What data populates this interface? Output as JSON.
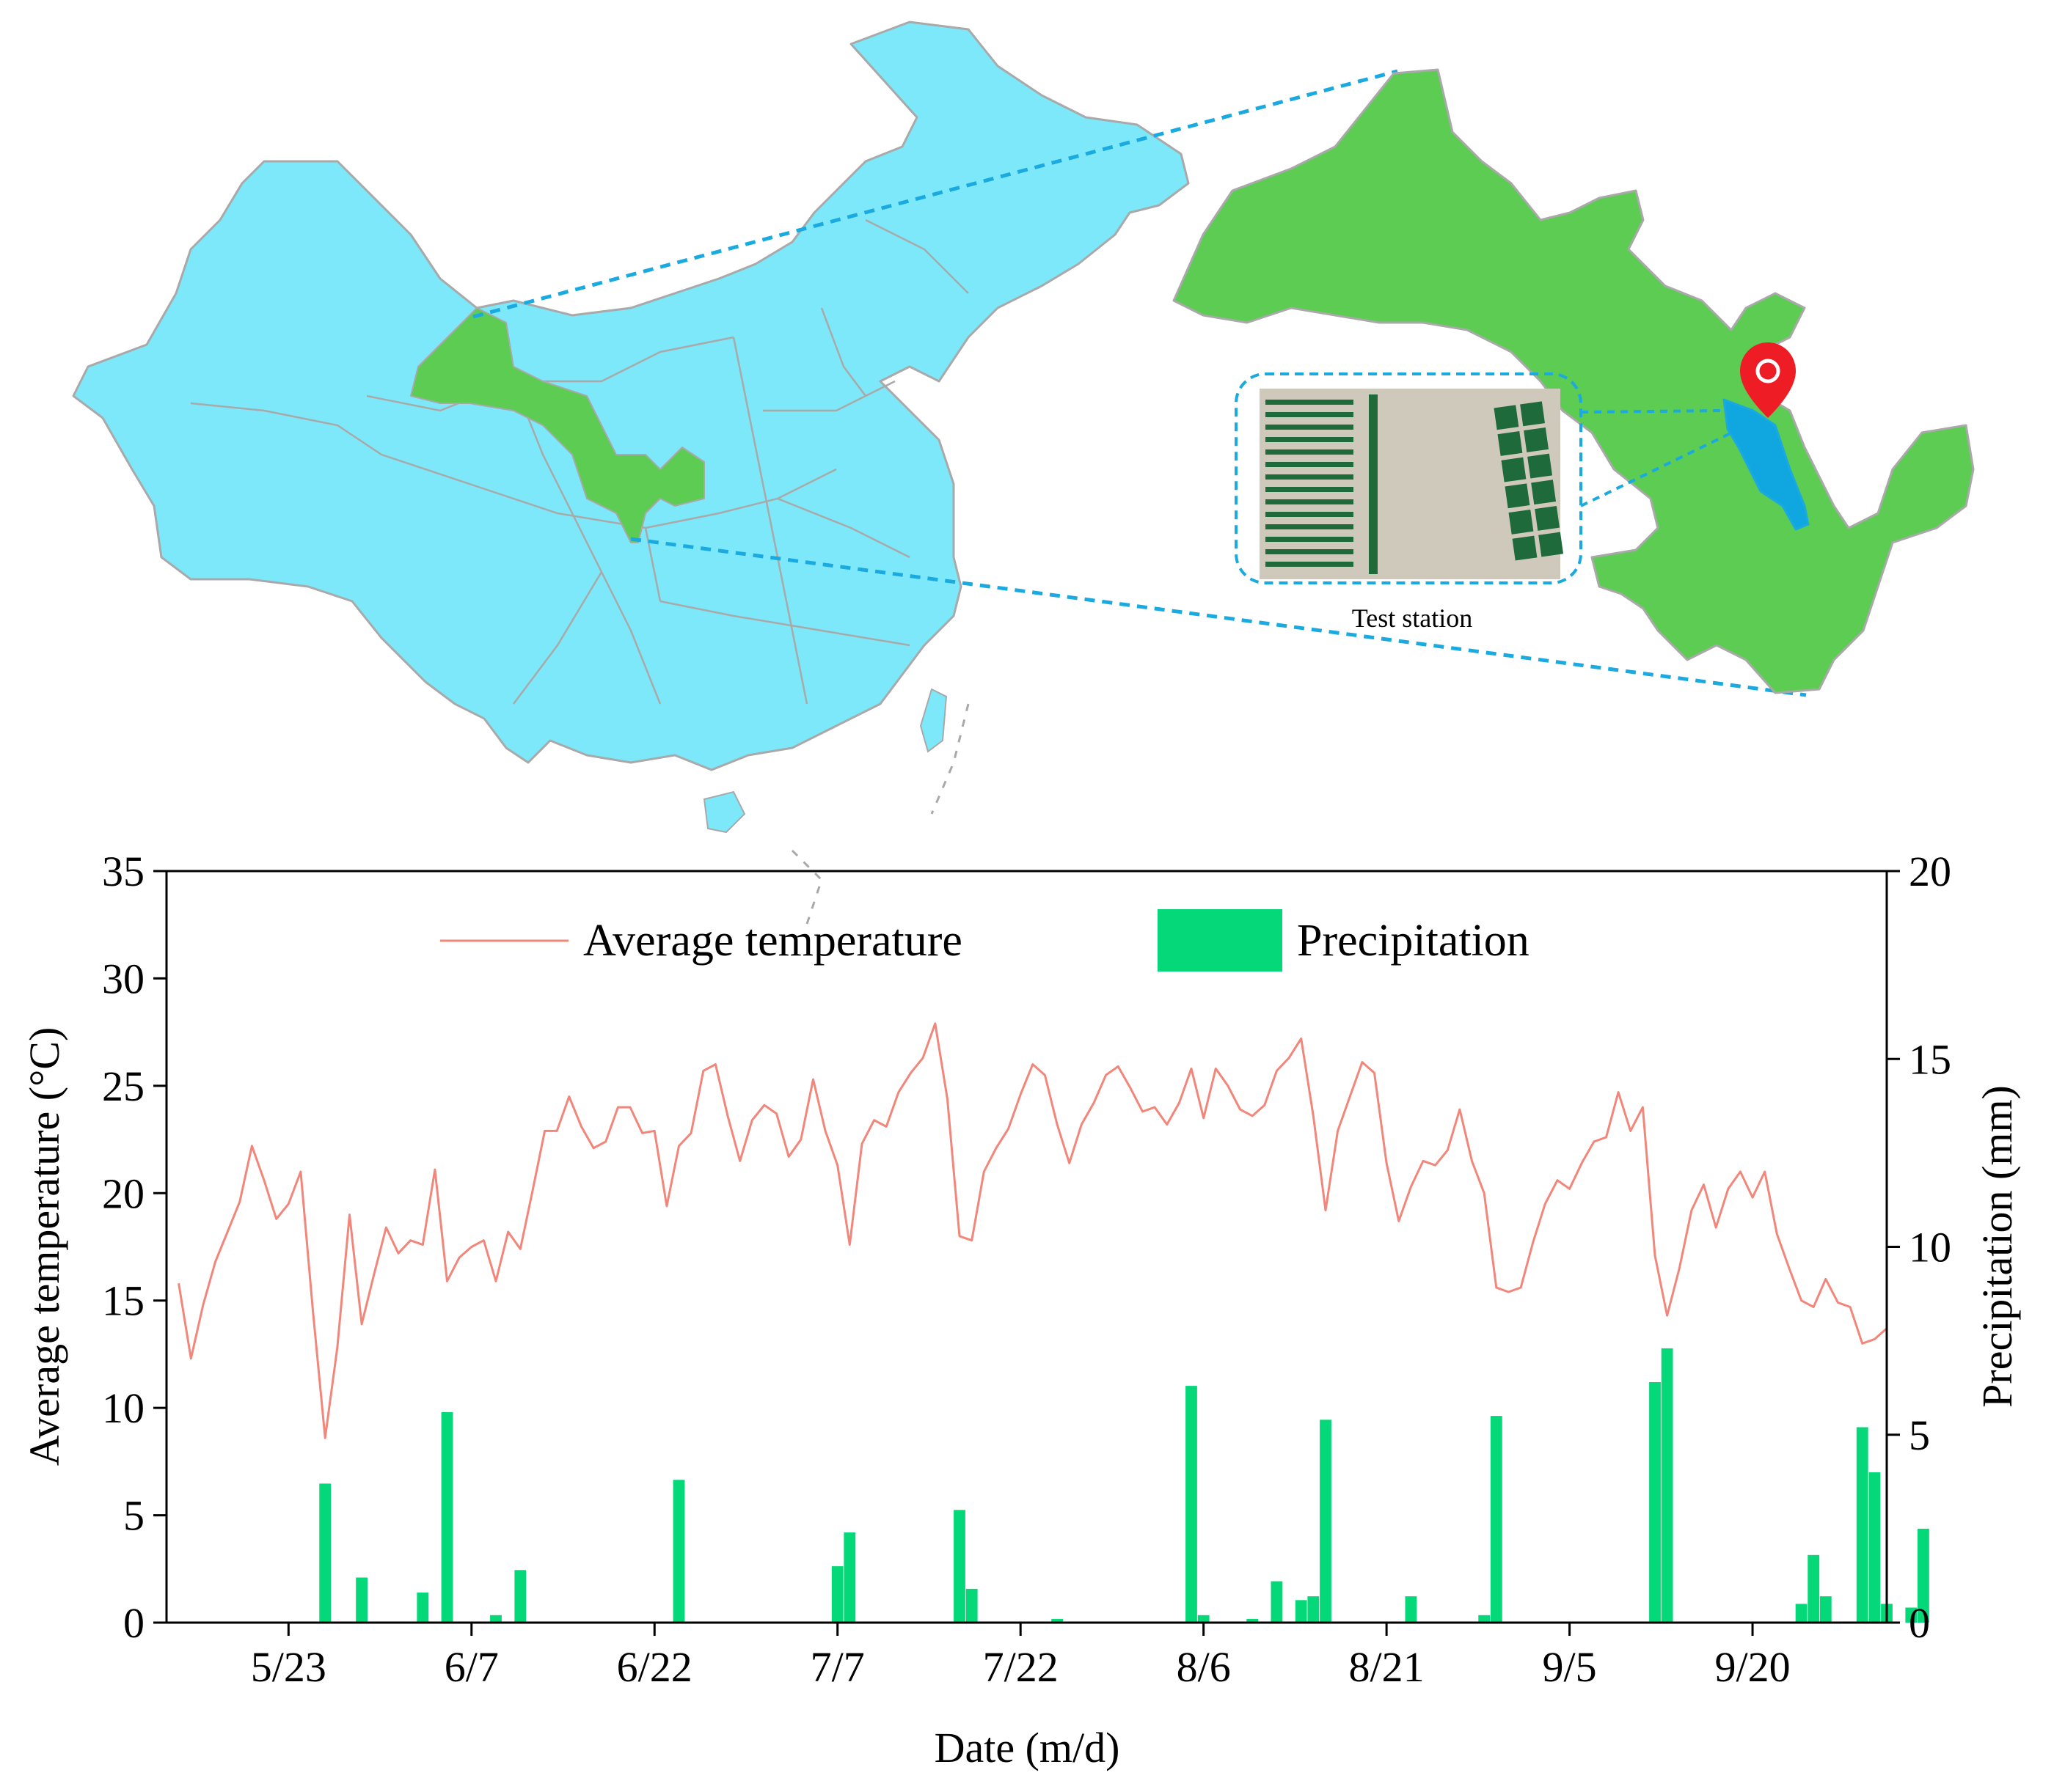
{
  "colors": {
    "china_fill": "#7ce8fa",
    "gansu_fill": "#5ccc52",
    "region_fill": "#10a6e0",
    "connector": "#1aaadf",
    "border": "#a9a9a9",
    "pin": "#ee1c24",
    "temperature_line": "#f2867a",
    "precipitation_bar": "#05d879",
    "photo_soil": "#cfc9bb",
    "photo_crop": "#1f6a3a"
  },
  "map": {
    "icons": [
      "china-map-icon",
      "gansu-map-icon",
      "location-pin-icon",
      "field-photo-icon"
    ],
    "test_station_label": "Test station"
  },
  "chart_data": {
    "type": "bar+line",
    "xlabel": "Date (m/d)",
    "ylabel_left": "Average temperature (°C)",
    "ylabel_right": "Precipitation (mm)",
    "xlim": [
      "5/13",
      "10/1"
    ],
    "ylim_left": [
      0,
      35
    ],
    "ylim_right": [
      0,
      20
    ],
    "yticks_left": [
      "0",
      "5",
      "10",
      "15",
      "20",
      "25",
      "30",
      "35"
    ],
    "yticks_right": [
      "0",
      "5",
      "10",
      "15",
      "20"
    ],
    "x_ticks": [
      {
        "label": "5/23",
        "date": "5/23"
      },
      {
        "label": "6/7",
        "date": "6/7"
      },
      {
        "label": "6/22",
        "date": "6/22"
      },
      {
        "label": "7/7",
        "date": "7/7"
      },
      {
        "label": "7/22",
        "date": "7/22"
      },
      {
        "label": "8/6",
        "date": "8/6"
      },
      {
        "label": "8/21",
        "date": "8/21"
      },
      {
        "label": "9/5",
        "date": "9/5"
      },
      {
        "label": "9/20",
        "date": "9/20"
      }
    ],
    "legend": {
      "position": "top-center",
      "entries": [
        {
          "label": "Average temperature",
          "kind": "line"
        },
        {
          "label": "Precipitation",
          "kind": "bar"
        }
      ]
    },
    "series": [
      {
        "name": "Average temperature",
        "type": "line",
        "axis": "left",
        "points": [
          [
            "5/14",
            15.8
          ],
          [
            "5/15",
            12.3
          ],
          [
            "5/16",
            14.8
          ],
          [
            "5/17",
            16.8
          ],
          [
            "5/18",
            18.2
          ],
          [
            "5/19",
            19.6
          ],
          [
            "5/20",
            22.2
          ],
          [
            "5/21",
            20.6
          ],
          [
            "5/22",
            18.8
          ],
          [
            "5/23",
            19.5
          ],
          [
            "5/24",
            21.0
          ],
          [
            "5/25",
            14.5
          ],
          [
            "5/26",
            8.6
          ],
          [
            "5/27",
            12.8
          ],
          [
            "5/28",
            19.0
          ],
          [
            "5/29",
            13.9
          ],
          [
            "5/30",
            16.2
          ],
          [
            "5/31",
            18.4
          ],
          [
            "6/1",
            17.2
          ],
          [
            "6/2",
            17.8
          ],
          [
            "6/3",
            17.6
          ],
          [
            "6/4",
            21.1
          ],
          [
            "6/5",
            15.9
          ],
          [
            "6/6",
            17.0
          ],
          [
            "6/7",
            17.5
          ],
          [
            "6/8",
            17.8
          ],
          [
            "6/9",
            15.9
          ],
          [
            "6/10",
            18.2
          ],
          [
            "6/11",
            17.4
          ],
          [
            "6/12",
            20.1
          ],
          [
            "6/13",
            22.9
          ],
          [
            "6/14",
            22.9
          ],
          [
            "6/15",
            24.5
          ],
          [
            "6/16",
            23.1
          ],
          [
            "6/17",
            22.1
          ],
          [
            "6/18",
            22.4
          ],
          [
            "6/19",
            24.0
          ],
          [
            "6/20",
            24.0
          ],
          [
            "6/21",
            22.8
          ],
          [
            "6/22",
            22.9
          ],
          [
            "6/23",
            19.4
          ],
          [
            "6/24",
            22.2
          ],
          [
            "6/25",
            22.8
          ],
          [
            "6/26",
            25.7
          ],
          [
            "6/27",
            26.0
          ],
          [
            "6/28",
            23.6
          ],
          [
            "6/29",
            21.5
          ],
          [
            "6/30",
            23.4
          ],
          [
            "7/1",
            24.1
          ],
          [
            "7/2",
            23.7
          ],
          [
            "7/3",
            21.7
          ],
          [
            "7/4",
            22.5
          ],
          [
            "7/5",
            25.3
          ],
          [
            "7/6",
            22.9
          ],
          [
            "7/7",
            21.3
          ],
          [
            "7/8",
            17.6
          ],
          [
            "7/9",
            22.3
          ],
          [
            "7/10",
            23.4
          ],
          [
            "7/11",
            23.1
          ],
          [
            "7/12",
            24.7
          ],
          [
            "7/13",
            25.6
          ],
          [
            "7/14",
            26.3
          ],
          [
            "7/15",
            27.9
          ],
          [
            "7/16",
            24.4
          ],
          [
            "7/17",
            18.0
          ],
          [
            "7/18",
            17.8
          ],
          [
            "7/19",
            21.0
          ],
          [
            "7/20",
            22.1
          ],
          [
            "7/21",
            23.0
          ],
          [
            "7/22",
            24.6
          ],
          [
            "7/23",
            26.0
          ],
          [
            "7/24",
            25.5
          ],
          [
            "7/25",
            23.2
          ],
          [
            "7/26",
            21.4
          ],
          [
            "7/27",
            23.2
          ],
          [
            "7/28",
            24.2
          ],
          [
            "7/29",
            25.5
          ],
          [
            "7/30",
            25.9
          ],
          [
            "7/31",
            24.9
          ],
          [
            "8/1",
            23.8
          ],
          [
            "8/2",
            24.0
          ],
          [
            "8/3",
            23.2
          ],
          [
            "8/4",
            24.2
          ],
          [
            "8/5",
            25.8
          ],
          [
            "8/6",
            23.5
          ],
          [
            "8/7",
            25.8
          ],
          [
            "8/8",
            25.0
          ],
          [
            "8/9",
            23.9
          ],
          [
            "8/10",
            23.6
          ],
          [
            "8/11",
            24.1
          ],
          [
            "8/12",
            25.7
          ],
          [
            "8/13",
            26.3
          ],
          [
            "8/14",
            27.2
          ],
          [
            "8/15",
            23.6
          ],
          [
            "8/16",
            19.2
          ],
          [
            "8/17",
            22.9
          ],
          [
            "8/18",
            24.5
          ],
          [
            "8/19",
            26.1
          ],
          [
            "8/20",
            25.6
          ],
          [
            "8/21",
            21.4
          ],
          [
            "8/22",
            18.7
          ],
          [
            "8/23",
            20.3
          ],
          [
            "8/24",
            21.5
          ],
          [
            "8/25",
            21.3
          ],
          [
            "8/26",
            22.0
          ],
          [
            "8/27",
            23.9
          ],
          [
            "8/28",
            21.5
          ],
          [
            "8/29",
            20.0
          ],
          [
            "8/30",
            15.6
          ],
          [
            "8/31",
            15.4
          ],
          [
            "9/1",
            15.6
          ],
          [
            "9/2",
            17.7
          ],
          [
            "9/3",
            19.5
          ],
          [
            "9/4",
            20.6
          ],
          [
            "9/5",
            20.2
          ],
          [
            "9/6",
            21.4
          ],
          [
            "9/7",
            22.4
          ],
          [
            "9/8",
            22.6
          ],
          [
            "9/9",
            24.7
          ],
          [
            "9/10",
            22.9
          ],
          [
            "9/11",
            24.0
          ],
          [
            "9/12",
            17.1
          ],
          [
            "9/13",
            14.3
          ],
          [
            "9/14",
            16.5
          ],
          [
            "9/15",
            19.2
          ],
          [
            "9/16",
            20.4
          ],
          [
            "9/17",
            18.4
          ],
          [
            "9/18",
            20.2
          ],
          [
            "9/19",
            21.0
          ],
          [
            "9/20",
            19.8
          ],
          [
            "9/21",
            21.0
          ],
          [
            "9/22",
            18.1
          ],
          [
            "9/23",
            16.5
          ],
          [
            "9/24",
            15.0
          ],
          [
            "9/25",
            14.7
          ],
          [
            "9/26",
            16.0
          ],
          [
            "9/27",
            14.9
          ],
          [
            "9/28",
            14.7
          ],
          [
            "9/29",
            13.0
          ],
          [
            "9/30",
            13.2
          ],
          [
            "10/1",
            13.7
          ]
        ]
      },
      {
        "name": "Precipitation",
        "type": "bar",
        "axis": "right",
        "points": [
          [
            "5/26",
            3.7
          ],
          [
            "5/29",
            1.2
          ],
          [
            "6/3",
            0.8
          ],
          [
            "6/5",
            5.6
          ],
          [
            "6/9",
            0.2
          ],
          [
            "6/11",
            1.4
          ],
          [
            "6/24",
            3.8
          ],
          [
            "7/7",
            1.5
          ],
          [
            "7/8",
            2.4
          ],
          [
            "7/17",
            3.0
          ],
          [
            "7/18",
            0.9
          ],
          [
            "7/25",
            0.1
          ],
          [
            "8/5",
            6.3
          ],
          [
            "8/6",
            0.2
          ],
          [
            "8/10",
            0.1
          ],
          [
            "8/12",
            1.1
          ],
          [
            "8/14",
            0.6
          ],
          [
            "8/15",
            0.7
          ],
          [
            "8/16",
            5.4
          ],
          [
            "8/23",
            0.7
          ],
          [
            "8/29",
            0.2
          ],
          [
            "8/30",
            5.5
          ],
          [
            "9/12",
            6.4
          ],
          [
            "9/13",
            7.3
          ],
          [
            "9/24",
            0.5
          ],
          [
            "9/25",
            1.8
          ],
          [
            "9/26",
            0.7
          ],
          [
            "9/29",
            5.2
          ],
          [
            "9/30",
            4.0
          ],
          [
            "10/1",
            0.5
          ],
          [
            "10/3",
            0.4
          ],
          [
            "10/4",
            2.5
          ]
        ]
      }
    ]
  }
}
